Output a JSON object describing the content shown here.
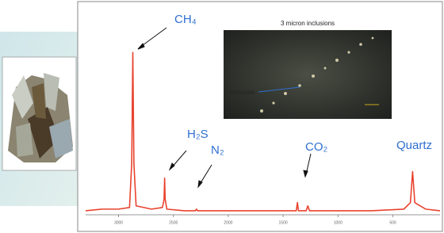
{
  "chart_data": {
    "type": "line",
    "annotations": [
      "CH₄",
      "H₂S",
      "N₂",
      "CO₂",
      "Quartz"
    ],
    "inset_title": "3 micron inclusions",
    "inset_label": "Inclusion",
    "x": [
      3300,
      3150,
      3000,
      2900,
      2880,
      2870,
      2860,
      2840,
      2700,
      2600,
      2585,
      2580,
      2575,
      2560,
      2400,
      2300,
      2290,
      2280,
      2000,
      1700,
      1500,
      1380,
      1370,
      1360,
      1290,
      1275,
      1260,
      1000,
      700,
      400,
      340,
      320,
      300,
      200,
      70
    ],
    "values": [
      1,
      2,
      2,
      3,
      30,
      98,
      30,
      4,
      2,
      3,
      8,
      21,
      8,
      2,
      1,
      1,
      2,
      1,
      1,
      1,
      1,
      1,
      6,
      1,
      1,
      4,
      1,
      1,
      1,
      2,
      6,
      25,
      6,
      2,
      1
    ],
    "color": "#e8432e",
    "xlim": [
      3300,
      70
    ],
    "ylim": [
      0,
      100
    ],
    "xticks": [
      3000,
      2500,
      2000,
      1500,
      1000,
      500
    ]
  }
}
